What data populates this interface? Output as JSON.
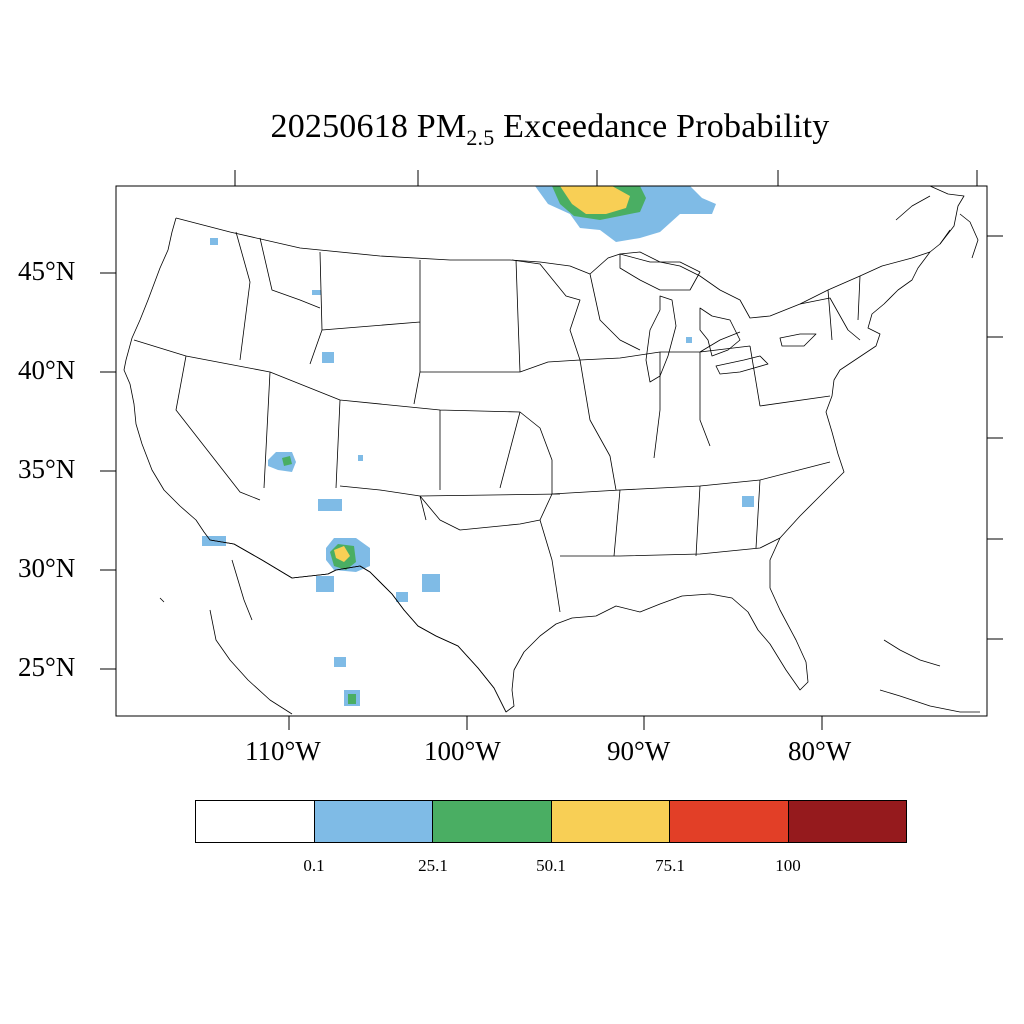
{
  "map": {
    "title_prefix": "20250618 PM",
    "title_subscript": "2.5",
    "title_suffix": " Exceedance Probability",
    "lat_labels": [
      "45°N",
      "40°N",
      "35°N",
      "30°N",
      "25°N"
    ],
    "lon_labels": [
      "110°W",
      "100°W",
      "90°W",
      "80°W"
    ],
    "colorbar": {
      "colors": [
        "#ffffff",
        "#7fbbe6",
        "#4aae63",
        "#f8cf55",
        "#e23f27",
        "#951a1d"
      ],
      "tick_labels": [
        "0.1",
        "25.1",
        "50.1",
        "75.1",
        "100"
      ]
    }
  }
}
